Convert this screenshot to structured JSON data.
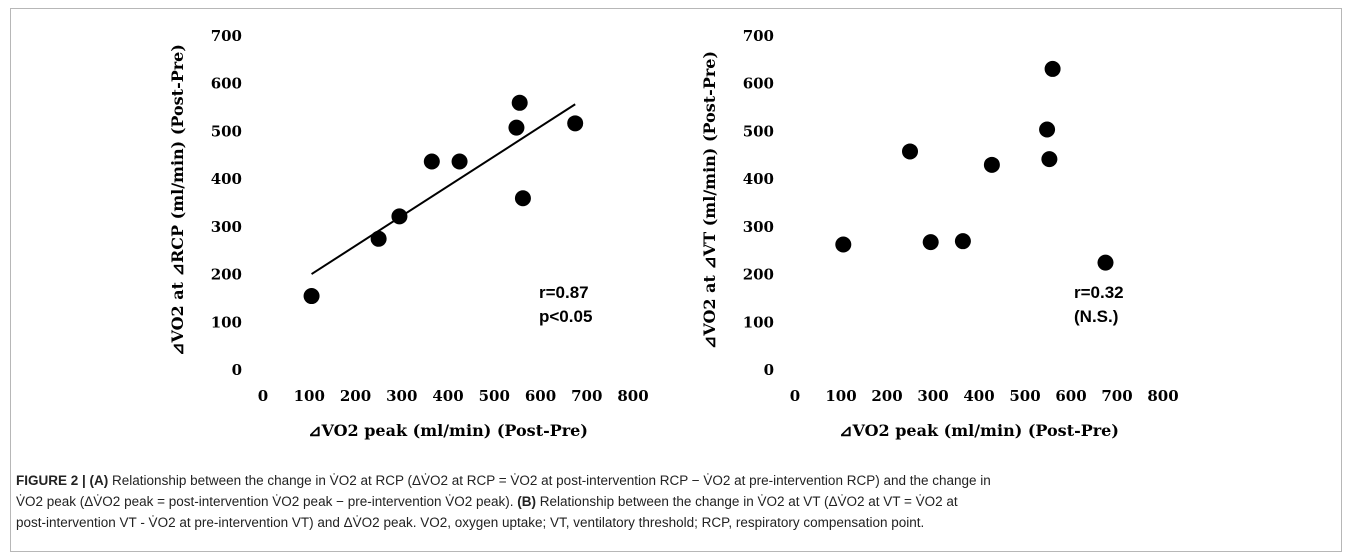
{
  "chart_data": [
    {
      "type": "scatter",
      "panel": "A",
      "xlabel": "⊿VO2 peak (ml/min) (Post-Pre)",
      "ylabel": "⊿VO2 at ⊿RCP (ml/min) (Post-Pre)",
      "xlim": [
        0,
        800
      ],
      "ylim": [
        0,
        700
      ],
      "xticks": [
        0,
        100,
        200,
        300,
        400,
        500,
        600,
        700,
        800
      ],
      "yticks": [
        0,
        100,
        200,
        300,
        400,
        500,
        600,
        700
      ],
      "grid": false,
      "points": [
        {
          "x": 105,
          "y": 155
        },
        {
          "x": 250,
          "y": 275
        },
        {
          "x": 295,
          "y": 322
        },
        {
          "x": 365,
          "y": 437
        },
        {
          "x": 425,
          "y": 437
        },
        {
          "x": 548,
          "y": 508
        },
        {
          "x": 555,
          "y": 560
        },
        {
          "x": 562,
          "y": 360
        },
        {
          "x": 675,
          "y": 517
        }
      ],
      "trendline": {
        "x": [
          105,
          675
        ],
        "y": [
          201,
          557
        ]
      },
      "annotations": [
        "r=0.87",
        "p<0.05"
      ]
    },
    {
      "type": "scatter",
      "panel": "B",
      "xlabel": "⊿VO2 peak (ml/min) (Post-Pre)",
      "ylabel": "⊿VO2 at ⊿VT (ml/min) (Post-Pre)",
      "xlim": [
        0,
        800
      ],
      "ylim": [
        0,
        700
      ],
      "xticks": [
        0,
        100,
        200,
        300,
        400,
        500,
        600,
        700,
        800
      ],
      "yticks": [
        0,
        100,
        200,
        300,
        400,
        500,
        600,
        700
      ],
      "grid": false,
      "points": [
        {
          "x": 105,
          "y": 263
        },
        {
          "x": 250,
          "y": 458
        },
        {
          "x": 295,
          "y": 268
        },
        {
          "x": 365,
          "y": 270
        },
        {
          "x": 428,
          "y": 430
        },
        {
          "x": 548,
          "y": 504
        },
        {
          "x": 553,
          "y": 442
        },
        {
          "x": 560,
          "y": 631
        },
        {
          "x": 675,
          "y": 225
        }
      ],
      "annotations": [
        "r=0.32",
        "(N.S.)"
      ]
    }
  ],
  "caption": {
    "label": "FIGURE 2 | (A)",
    "line1_rest": " Relationship between the change in V̇O2 at RCP (ΔV̇O2 at RCP = V̇O2 at post-intervention RCP − V̇O2 at pre-intervention RCP) and the change in",
    "line2a": "V̇O2 peak (ΔV̇O2 peak = post-intervention V̇O2 peak − pre-intervention V̇O2 peak). ",
    "label_b": "(B)",
    "line2b": " Relationship between the change in V̇O2 at VT (ΔV̇O2 at VT = V̇O2 at",
    "line3": "post-intervention VT - V̇O2 at pre-intervention VT) and ΔV̇O2 peak. VO2, oxygen uptake; VT, ventilatory threshold; RCP, respiratory compensation point."
  }
}
